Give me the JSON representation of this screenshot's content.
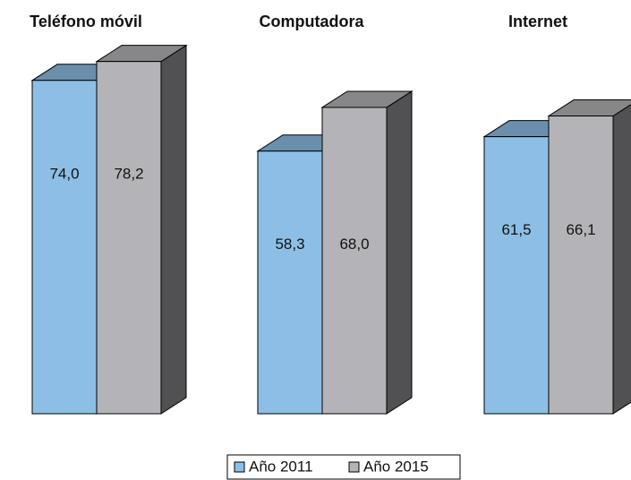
{
  "chart_data": {
    "type": "bar",
    "categories": [
      "Teléfono móvil",
      "Computadora",
      "Internet"
    ],
    "series": [
      {
        "name": "Año 2011",
        "color": "#8dbfe6",
        "values": [
          74.0,
          58.3,
          61.5
        ],
        "value_labels": [
          "74,0",
          "58,3",
          "61,5"
        ]
      },
      {
        "name": "Año 2015",
        "color": "#b4b4b8",
        "values": [
          78.2,
          68.0,
          66.1
        ],
        "value_labels": [
          "78,2",
          "68,0",
          "66,1"
        ]
      }
    ],
    "legend": "bottom"
  }
}
